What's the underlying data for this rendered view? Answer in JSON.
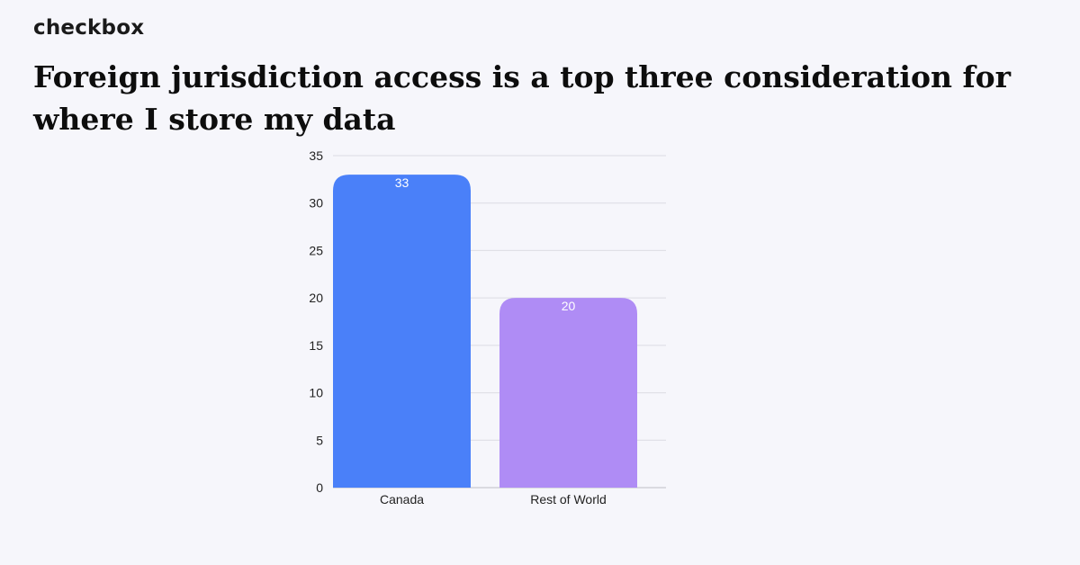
{
  "brand": {
    "name": "checkbox"
  },
  "chart_data": {
    "type": "bar",
    "title": "Foreign jurisdiction access is a top three consideration for where I store my data",
    "xlabel": "",
    "ylabel": "",
    "categories": [
      "Canada",
      "Rest of World"
    ],
    "values": [
      33,
      20
    ],
    "data_labels": [
      "33",
      "20"
    ],
    "colors": [
      "#4a80f9",
      "#af8cf5"
    ],
    "ylim": [
      0,
      35
    ],
    "yticks": [
      0,
      5,
      10,
      15,
      20,
      25,
      30,
      35
    ],
    "grid": true,
    "legend": "none"
  }
}
